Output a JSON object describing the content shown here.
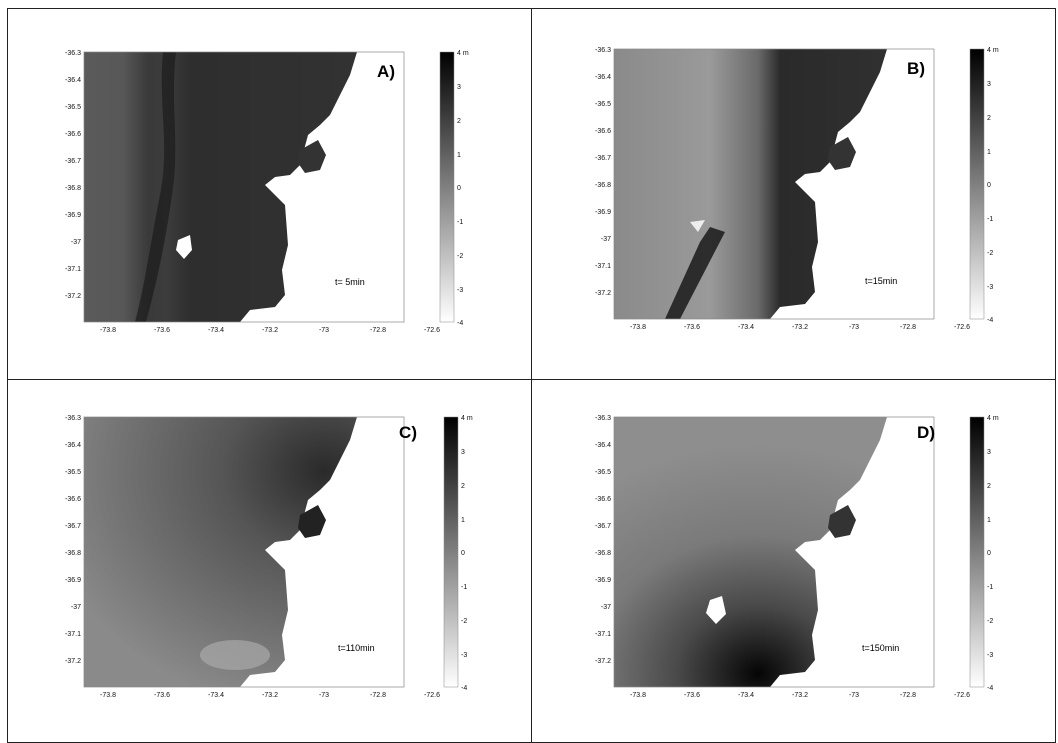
{
  "panels": [
    {
      "id": "A",
      "label": "A)",
      "time_label": "t= 5min"
    },
    {
      "id": "B",
      "label": "B)",
      "time_label": "t=15min"
    },
    {
      "id": "C",
      "label": "C)",
      "time_label": "t=110min"
    },
    {
      "id": "D",
      "label": "D)",
      "time_label": "t=150min"
    }
  ],
  "axes": {
    "y_ticks": [
      "-36.3",
      "-36.4",
      "-36.5",
      "-36.6",
      "-36.7",
      "-36.8",
      "-36.9",
      "-37",
      "-37.1",
      "-37.2"
    ],
    "x_ticks": [
      "-73.8",
      "-73.6",
      "-73.4",
      "-73.2",
      "-73",
      "-72.8",
      "-72.6"
    ]
  },
  "colorbar": {
    "ticks": [
      "4 m",
      "3",
      "2",
      "1",
      "0",
      "-1",
      "-2",
      "-3",
      "-4"
    ],
    "range": [
      -4,
      4
    ],
    "colors": {
      "top": "#000000",
      "bottom": "#ffffff"
    }
  }
}
